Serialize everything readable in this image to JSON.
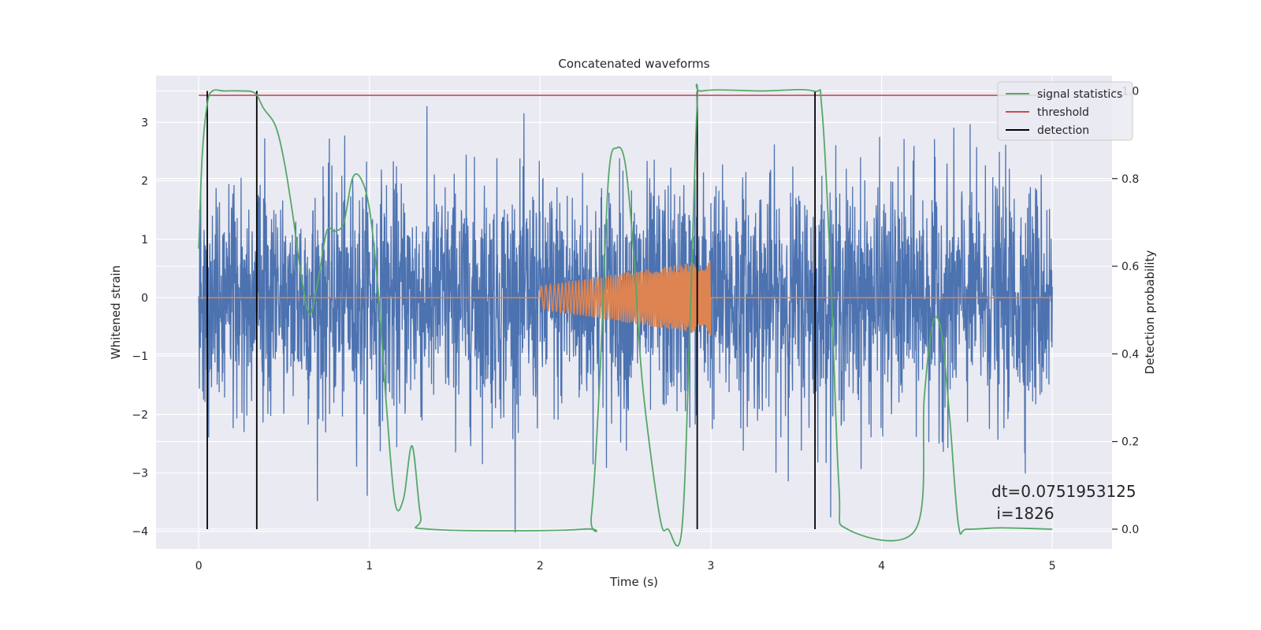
{
  "chart_data": {
    "type": "line",
    "title": "Concatenated waveforms",
    "xlabel": "Time (s)",
    "ylabel": "Whitened strain",
    "y2label": "Detection probability",
    "xlim": [
      -0.25,
      5.35
    ],
    "ylim": [
      -4.3,
      3.8
    ],
    "y2lim": [
      -0.045,
      1.035
    ],
    "xticks": [
      0,
      1,
      2,
      3,
      4,
      5
    ],
    "yticks": [
      -4,
      -3,
      -2,
      -1,
      0,
      1,
      2,
      3
    ],
    "y2ticks": [
      0.0,
      0.2,
      0.4,
      0.6,
      0.8,
      1.0
    ],
    "xtick_labels": [
      "0",
      "1",
      "2",
      "3",
      "4",
      "5"
    ],
    "ytick_labels": [
      "−4",
      "−3",
      "−2",
      "−1",
      "0",
      "1",
      "2",
      "3"
    ],
    "y2tick_labels": [
      "0.0",
      "0.2",
      "0.4",
      "0.6",
      "0.8",
      "1.0"
    ],
    "grid": true,
    "background": "#eaeaf2",
    "legend_position": "top-right",
    "series": [
      {
        "name": "signal statistics",
        "color": "#55a868",
        "axis": "right",
        "points": [
          [
            0.0,
            0.64
          ],
          [
            0.02,
            0.85
          ],
          [
            0.05,
            0.97
          ],
          [
            0.08,
            1.0
          ],
          [
            0.15,
            1.0
          ],
          [
            0.25,
            1.0
          ],
          [
            0.33,
            0.995
          ],
          [
            0.38,
            0.96
          ],
          [
            0.45,
            0.92
          ],
          [
            0.5,
            0.84
          ],
          [
            0.55,
            0.72
          ],
          [
            0.6,
            0.58
          ],
          [
            0.65,
            0.49
          ],
          [
            0.7,
            0.57
          ],
          [
            0.75,
            0.68
          ],
          [
            0.8,
            0.68
          ],
          [
            0.85,
            0.7
          ],
          [
            0.9,
            0.8
          ],
          [
            0.95,
            0.8
          ],
          [
            1.0,
            0.73
          ],
          [
            1.05,
            0.55
          ],
          [
            1.1,
            0.28
          ],
          [
            1.15,
            0.06
          ],
          [
            1.2,
            0.07
          ],
          [
            1.25,
            0.19
          ],
          [
            1.3,
            0.03
          ],
          [
            1.35,
            0.0
          ],
          [
            2.25,
            0.0
          ],
          [
            2.3,
            0.03
          ],
          [
            2.35,
            0.35
          ],
          [
            2.4,
            0.8
          ],
          [
            2.45,
            0.87
          ],
          [
            2.5,
            0.83
          ],
          [
            2.55,
            0.62
          ],
          [
            2.6,
            0.33
          ],
          [
            2.7,
            0.03
          ],
          [
            2.75,
            0.0
          ],
          [
            2.83,
            0.0
          ],
          [
            2.88,
            0.5
          ],
          [
            2.92,
            0.97
          ],
          [
            2.95,
            1.0
          ],
          [
            3.3,
            1.0
          ],
          [
            3.6,
            1.0
          ],
          [
            3.65,
            0.96
          ],
          [
            3.7,
            0.6
          ],
          [
            3.75,
            0.1
          ],
          [
            3.8,
            0.0
          ],
          [
            4.2,
            0.0
          ],
          [
            4.25,
            0.3
          ],
          [
            4.3,
            0.47
          ],
          [
            4.35,
            0.45
          ],
          [
            4.4,
            0.25
          ],
          [
            4.45,
            0.01
          ],
          [
            4.5,
            0.0
          ],
          [
            4.7,
            0.003
          ],
          [
            5.0,
            0.0
          ]
        ]
      },
      {
        "name": "threshold",
        "color": "#c44e52",
        "axis": "right",
        "points": [
          [
            0.0,
            0.99
          ],
          [
            5.0,
            0.99
          ]
        ]
      },
      {
        "name": "detection",
        "color": "#000000",
        "axis": "right",
        "vlines": [
          0.05,
          0.34,
          2.92,
          3.61
        ]
      },
      {
        "name": "whitened strain",
        "color": "#4c72b0",
        "axis": "left",
        "x_range": [
          0,
          5
        ],
        "approx_amplitude": 1.0,
        "peak_range": [
          -4.1,
          3.4
        ]
      },
      {
        "name": "injected waveform",
        "color": "#dd8452",
        "axis": "left",
        "x_range": [
          0,
          5
        ],
        "chirp_start": 2.0,
        "chirp_end": 3.0,
        "amplitude_start": 0.2,
        "amplitude_end": 0.65
      }
    ],
    "annotation": [
      "dt=0.0751953125",
      " i=1826"
    ]
  }
}
